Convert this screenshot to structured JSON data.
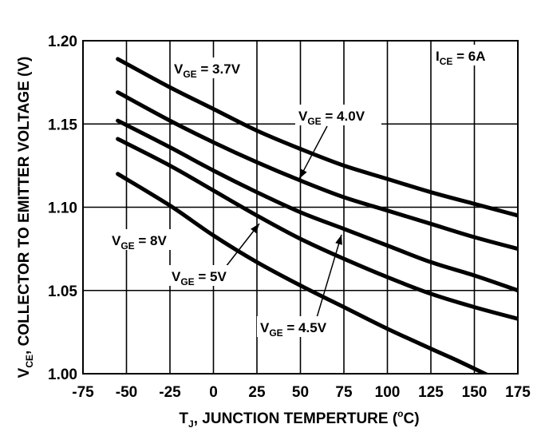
{
  "chart_data": {
    "type": "line",
    "title": "",
    "xlabel": {
      "main": "T",
      "sub": "J",
      "rest": ", JUNCTION TEMPERTURE (",
      "sup": "o",
      "end": "C)"
    },
    "ylabel": {
      "main": "V",
      "sub": "CE",
      "rest": ", COLLECTOR TO EMITTER VOLTAGE (V)"
    },
    "xlim": [
      -75,
      175
    ],
    "ylim": [
      1.0,
      1.2
    ],
    "x_ticks": [
      "-75",
      "-50",
      "-25",
      "0",
      "25",
      "50",
      "75",
      "100",
      "125",
      "150",
      "175"
    ],
    "y_ticks": [
      "1.00",
      "1.05",
      "1.10",
      "1.15",
      "1.20"
    ],
    "grid": true,
    "series": [
      {
        "name": "V_GE = 3.7V",
        "x": [
          -55,
          -25,
          0,
          25,
          50,
          75,
          100,
          125,
          150,
          175
        ],
        "y": [
          1.189,
          1.172,
          1.159,
          1.146,
          1.135,
          1.125,
          1.117,
          1.109,
          1.102,
          1.095
        ]
      },
      {
        "name": "V_GE = 4.0V",
        "x": [
          -55,
          -25,
          0,
          25,
          50,
          75,
          100,
          125,
          150,
          175
        ],
        "y": [
          1.169,
          1.152,
          1.139,
          1.127,
          1.116,
          1.106,
          1.098,
          1.09,
          1.082,
          1.075
        ]
      },
      {
        "name": "V_GE = 4.5V",
        "x": [
          -55,
          -25,
          0,
          25,
          50,
          75,
          100,
          125,
          150,
          175
        ],
        "y": [
          1.152,
          1.136,
          1.122,
          1.109,
          1.097,
          1.087,
          1.077,
          1.067,
          1.059,
          1.05
        ]
      },
      {
        "name": "V_GE = 5V",
        "x": [
          -55,
          -25,
          0,
          25,
          50,
          75,
          100,
          125,
          150,
          175
        ],
        "y": [
          1.141,
          1.125,
          1.11,
          1.095,
          1.081,
          1.069,
          1.058,
          1.048,
          1.04,
          1.033
        ]
      },
      {
        "name": "V_GE = 8V",
        "x": [
          -55,
          -25,
          0,
          25,
          50,
          75,
          100,
          125,
          140,
          160
        ],
        "y": [
          1.12,
          1.101,
          1.083,
          1.067,
          1.053,
          1.04,
          1.027,
          1.015,
          1.008,
          0.998
        ]
      }
    ],
    "annotations": [
      {
        "main": "V",
        "sub": "GE",
        "rest": " = 3.7V"
      },
      {
        "main": "V",
        "sub": "GE",
        "rest": " = 4.0V"
      },
      {
        "main": "V",
        "sub": "GE",
        "rest": " = 8V"
      },
      {
        "main": "V",
        "sub": "GE",
        "rest": " = 5V"
      },
      {
        "main": "V",
        "sub": "GE",
        "rest": " = 4.5V"
      },
      {
        "main": "I",
        "sub": "CE",
        "rest": " = 6A"
      }
    ]
  }
}
